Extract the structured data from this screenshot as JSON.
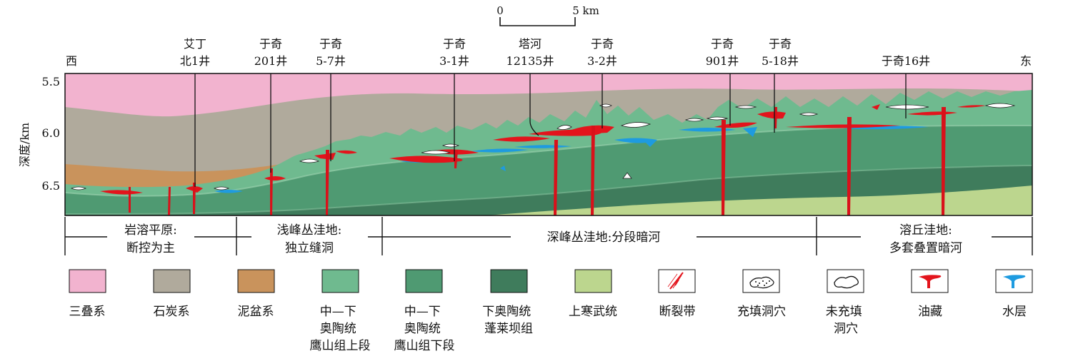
{
  "scale_bar": {
    "start": "0",
    "end": "5 km"
  },
  "directions": {
    "west": "西",
    "east": "东"
  },
  "wells": [
    {
      "lines": [
        "艾丁",
        "北1井"
      ]
    },
    {
      "lines": [
        "于奇",
        "201井"
      ]
    },
    {
      "lines": [
        "于奇",
        "5-7井"
      ]
    },
    {
      "lines": [
        "于奇",
        "3-1井"
      ]
    },
    {
      "lines": [
        "塔河",
        "12135井"
      ]
    },
    {
      "lines": [
        "于奇",
        "3-2井"
      ]
    },
    {
      "lines": [
        "于奇",
        "901井"
      ]
    },
    {
      "lines": [
        "于奇",
        "5-18井"
      ]
    },
    {
      "lines": [
        "于奇16井"
      ]
    }
  ],
  "depth_axis": {
    "label": "深度/km",
    "ticks": [
      "5.5",
      "6.0",
      "6.5"
    ]
  },
  "zones": [
    {
      "lines": [
        "岩溶平原:",
        "断控为主"
      ]
    },
    {
      "lines": [
        "浅峰丛洼地:",
        "独立缝洞"
      ]
    },
    {
      "lines": [
        "深峰丛洼地:分段暗河"
      ]
    },
    {
      "lines": [
        "溶丘洼地:",
        "多套叠置暗河"
      ]
    }
  ],
  "legend": [
    {
      "lines": [
        "三叠系"
      ],
      "color": "#f2b3cf"
    },
    {
      "lines": [
        "石炭系"
      ],
      "color": "#b0aa9c"
    },
    {
      "lines": [
        "泥盆系"
      ],
      "color": "#c9935c"
    },
    {
      "lines": [
        "中—下",
        "奥陶统",
        "鹰山组上段"
      ],
      "color": "#6fba8f"
    },
    {
      "lines": [
        "中—下",
        "奥陶统",
        "鹰山组下段"
      ],
      "color": "#4f9a72"
    },
    {
      "lines": [
        "下奥陶统",
        "蓬莱坝组"
      ],
      "color": "#3f7c5c"
    },
    {
      "lines": [
        "上寒武统"
      ],
      "color": "#bcd68e"
    },
    {
      "lines": [
        "断裂带"
      ],
      "icon": "fault-zone-icon"
    },
    {
      "lines": [
        "充填洞穴"
      ],
      "icon": "filled-cave-icon"
    },
    {
      "lines": [
        "未充填",
        "洞穴"
      ],
      "icon": "unfilled-cave-icon"
    },
    {
      "lines": [
        "油藏"
      ],
      "icon": "oil-reservoir-icon",
      "color": "#e3141c"
    },
    {
      "lines": [
        "水层"
      ],
      "icon": "water-layer-icon",
      "color": "#1e9be0"
    }
  ]
}
